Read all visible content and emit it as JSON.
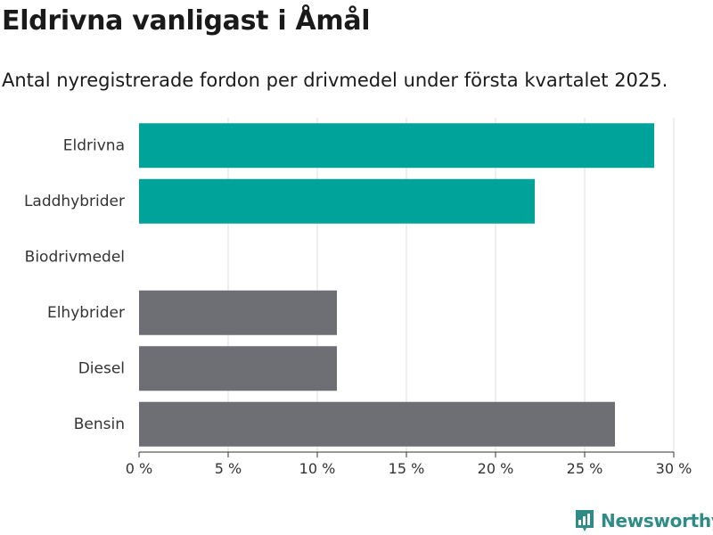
{
  "header": {
    "title": "Eldrivna vanligast i Åmål",
    "subtitle": "Antal nyregistrerade fordon per drivmedel under första kvartalet 2025."
  },
  "brand": {
    "name": "Newsworthy",
    "color": "#2e8b86",
    "icon": "bar-chart-logo-icon"
  },
  "colors": {
    "highlight": "#00a39a",
    "default": "#6e6e75",
    "grid": "#dddddd"
  },
  "chart_data": {
    "type": "bar",
    "orientation": "horizontal",
    "categories": [
      "Eldrivna",
      "Laddhybrider",
      "Biodrivmedel",
      "Elhybrider",
      "Diesel",
      "Bensin"
    ],
    "values": [
      28.9,
      22.2,
      0,
      11.1,
      11.1,
      26.7
    ],
    "highlight": [
      true,
      true,
      false,
      false,
      false,
      false
    ],
    "xlim": [
      0,
      30
    ],
    "xticks": [
      0,
      5,
      10,
      15,
      20,
      25,
      30
    ],
    "xtick_labels": [
      "0 %",
      "5 %",
      "10 %",
      "15 %",
      "20 %",
      "25 %",
      "30 %"
    ],
    "grid": true
  }
}
